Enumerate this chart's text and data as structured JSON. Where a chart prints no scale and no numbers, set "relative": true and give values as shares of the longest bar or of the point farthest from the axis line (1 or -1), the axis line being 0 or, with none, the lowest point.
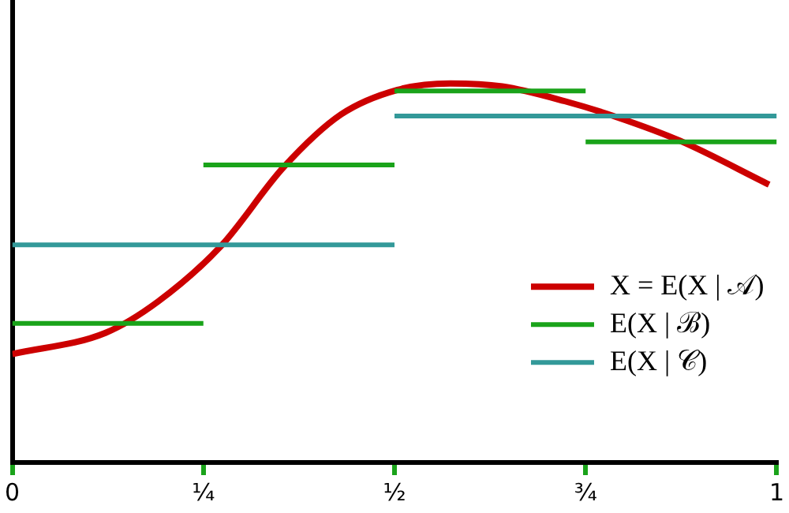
{
  "chart_data": {
    "type": "line",
    "relative": true,
    "xlim": [
      0,
      1
    ],
    "xticks": [
      {
        "value": 0,
        "label": "0"
      },
      {
        "value": 0.25,
        "label": "¼"
      },
      {
        "value": 0.5,
        "label": "½"
      },
      {
        "value": 0.75,
        "label": "¾"
      },
      {
        "value": 1,
        "label": "1"
      }
    ],
    "series": [
      {
        "name": "X = E(X | 𝒜)",
        "color": "#cc0000",
        "x": [
          0,
          0.122,
          0.191,
          0.273,
          0.355,
          0.43,
          0.504,
          0.573,
          0.641,
          0.723,
          0.791,
          0.873,
          0.99
        ],
        "values": [
          0.286,
          0.342,
          0.425,
          0.571,
          0.779,
          0.918,
          0.983,
          1,
          0.992,
          0.953,
          0.911,
          0.849,
          0.733
        ]
      },
      {
        "name": "E(X | ℬ)",
        "color": "#1aa31a",
        "x": [
          0,
          0.25
        ],
        "values": [
          0.367,
          0.367
        ]
      },
      {
        "color": "#1aa31a",
        "x": [
          0.25,
          0.5
        ],
        "values": [
          0.785,
          0.785
        ]
      },
      {
        "color": "#1aa31a",
        "x": [
          0.5,
          0.75
        ],
        "values": [
          0.98,
          0.98
        ]
      },
      {
        "color": "#1aa31a",
        "x": [
          0.75,
          1
        ],
        "values": [
          0.846,
          0.846
        ]
      },
      {
        "name": "E(X | 𝒞)",
        "color": "#339999",
        "x": [
          0,
          0.5
        ],
        "values": [
          0.574,
          0.574
        ]
      },
      {
        "color": "#339999",
        "x": [
          0.5,
          1
        ],
        "values": [
          0.914,
          0.914
        ]
      }
    ],
    "grid": false,
    "legend": "right",
    "marker": "none",
    "line_style": "solid"
  }
}
